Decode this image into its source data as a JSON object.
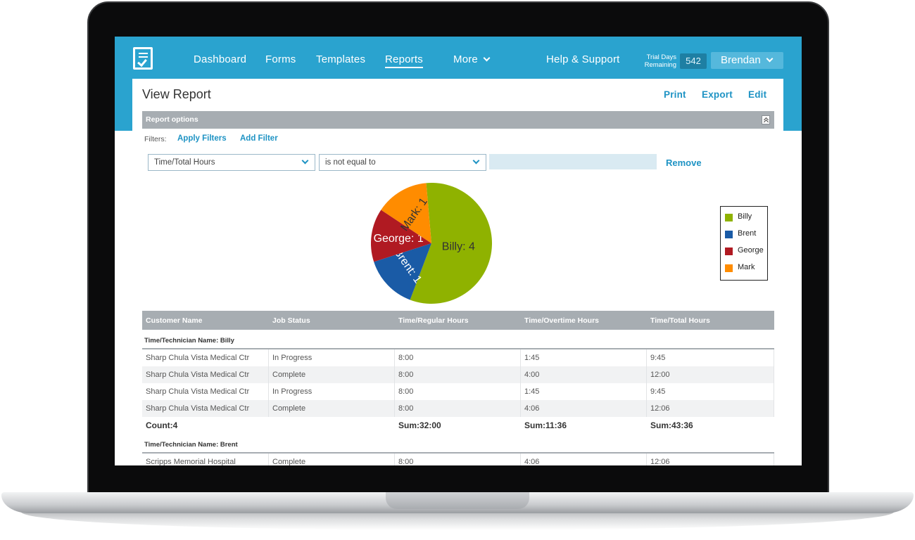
{
  "nav": {
    "logo_icon": "clipboard-check-icon",
    "items": [
      "Dashboard",
      "Forms",
      "Templates",
      "Reports",
      "More"
    ],
    "help": "Help & Support",
    "trial_label_line1": "Trial Days",
    "trial_label_line2": "Remaining",
    "trial_days": "542",
    "user": "Brendan"
  },
  "page": {
    "title": "View Report",
    "actions": [
      "Print",
      "Export",
      "Edit"
    ]
  },
  "options": {
    "title": "Report options",
    "filters_label": "Filters:",
    "apply_filters": "Apply Filters",
    "add_filter": "Add Filter",
    "field_select": "Time/Total Hours",
    "operator_select": "is not equal to",
    "value": "",
    "remove": "Remove"
  },
  "chart_data": {
    "type": "pie",
    "slices": [
      {
        "name": "Billy",
        "value": 4,
        "label": "Billy: 4",
        "color": "#8fb200"
      },
      {
        "name": "Brent",
        "value": 1,
        "label": "Brent: 1",
        "color": "#1a5ba6"
      },
      {
        "name": "George",
        "value": 1,
        "label": "George: 1",
        "color": "#b01a22"
      },
      {
        "name": "Mark",
        "value": 1,
        "label": "Mark: 1",
        "color": "#ff8c00"
      }
    ],
    "legend": [
      "Billy",
      "Brent",
      "George",
      "Mark"
    ],
    "legend_position": "right"
  },
  "table": {
    "columns": [
      "Customer Name",
      "Job Status",
      "Time/Regular Hours",
      "Time/Overtime Hours",
      "Time/Total Hours"
    ],
    "groups": [
      {
        "title": "Time/Technician Name: Billy",
        "rows": [
          [
            "Sharp Chula Vista Medical Ctr",
            "In Progress",
            "8:00",
            "1:45",
            "9:45"
          ],
          [
            "Sharp Chula Vista Medical Ctr",
            "Complete",
            "8:00",
            "4:00",
            "12:00"
          ],
          [
            "Sharp Chula Vista Medical Ctr",
            "In Progress",
            "8:00",
            "1:45",
            "9:45"
          ],
          [
            "Sharp Chula Vista Medical Ctr",
            "Complete",
            "8:00",
            "4:06",
            "12:06"
          ]
        ],
        "summary": {
          "count": "Count:4",
          "regular": "Sum:32:00",
          "overtime": "Sum:11:36",
          "total": "Sum:43:36"
        }
      },
      {
        "title": "Time/Technician Name: Brent",
        "rows": [
          [
            "Scripps Memorial Hospital",
            "Complete",
            "8:00",
            "4:06",
            "12:06"
          ]
        ]
      }
    ]
  }
}
